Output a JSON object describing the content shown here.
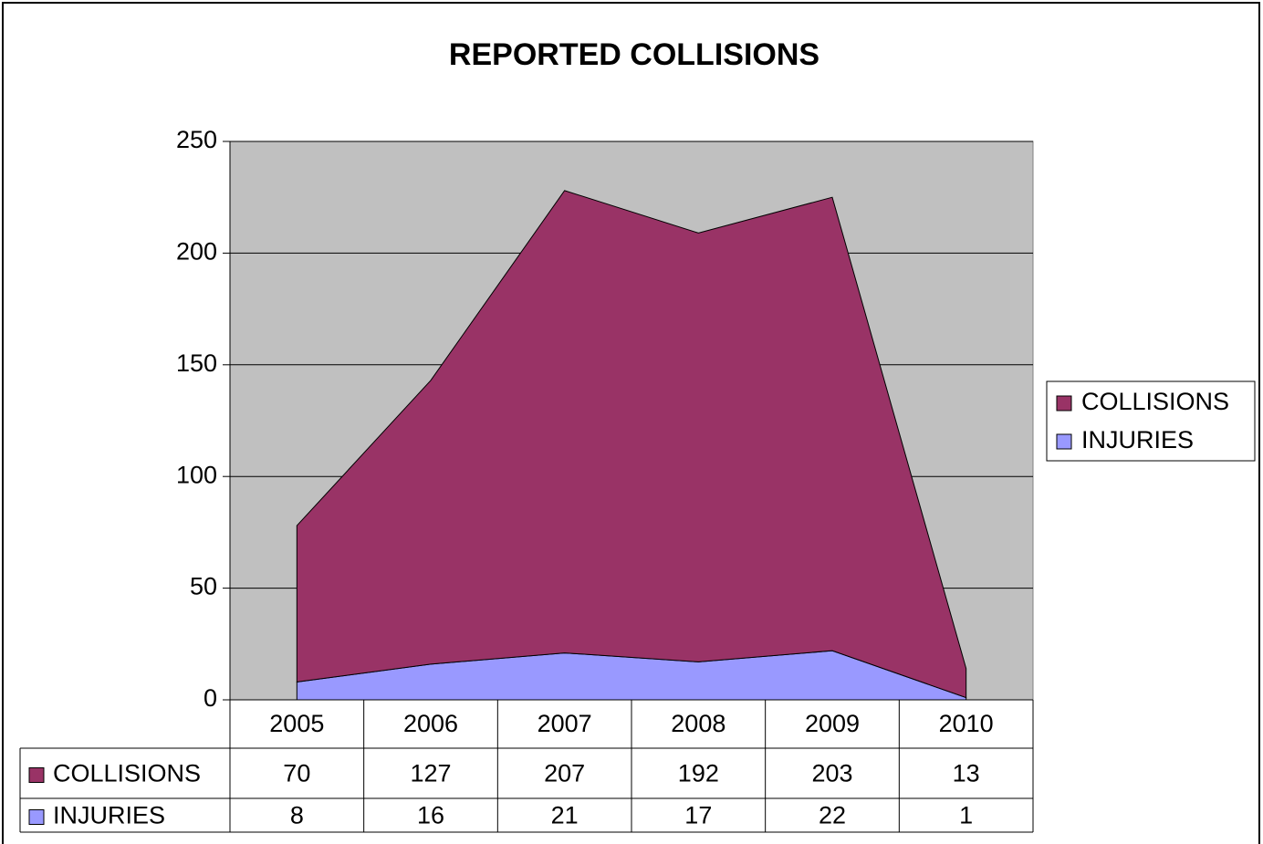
{
  "chart_data": {
    "type": "area",
    "stacked": true,
    "title": "REPORTED COLLISIONS",
    "categories": [
      "2005",
      "2006",
      "2007",
      "2008",
      "2009",
      "2010"
    ],
    "series": [
      {
        "name": "COLLISIONS",
        "color": "#993366",
        "values": [
          70,
          127,
          207,
          192,
          203,
          13
        ]
      },
      {
        "name": "INJURIES",
        "color": "#9999ff",
        "values": [
          8,
          16,
          21,
          17,
          22,
          1
        ]
      }
    ],
    "ylim": [
      0,
      250
    ],
    "yticks": [
      0,
      50,
      100,
      150,
      200,
      250
    ],
    "grid": true,
    "legend": "right",
    "plot_background": "#c0c0c0",
    "data_table": true
  }
}
